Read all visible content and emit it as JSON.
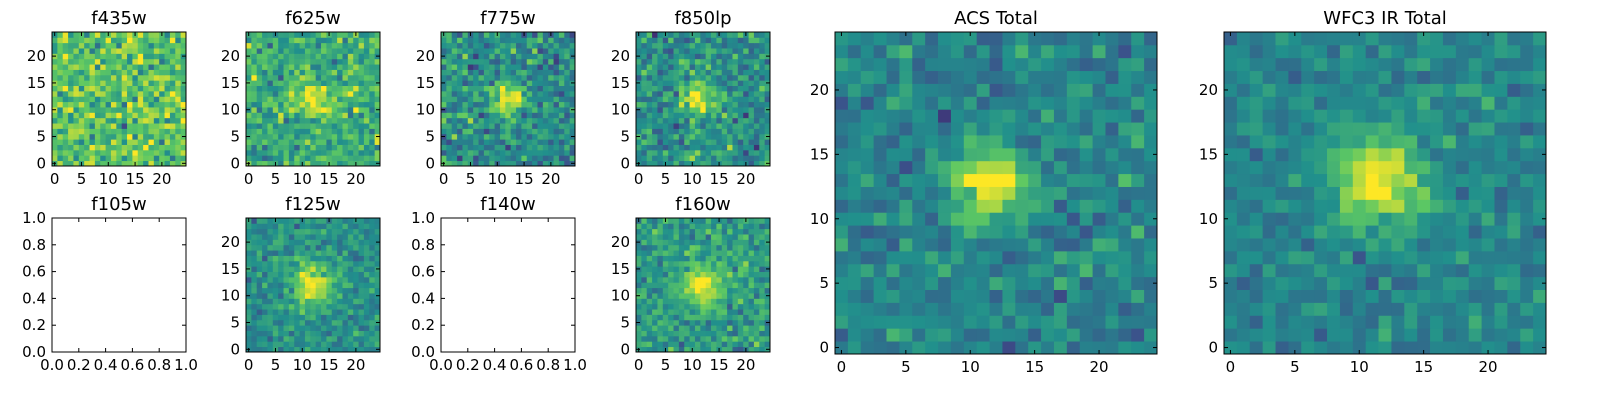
{
  "chart_data": [
    {
      "type": "heatmap",
      "title": "f435w",
      "empty": false,
      "xticks": [
        "0",
        "5",
        "10",
        "15",
        "20"
      ],
      "yticks": [
        "0",
        "5",
        "10",
        "15",
        "20"
      ],
      "xlim": [
        -0.5,
        24.5
      ],
      "ylim": [
        -0.5,
        24.5
      ],
      "peak": [
        12,
        12
      ],
      "noise": 0.55,
      "signal": 0.0,
      "base": 0.72,
      "sigma": 2.2,
      "seed": 11
    },
    {
      "type": "heatmap",
      "title": "f625w",
      "empty": false,
      "xticks": [
        "0",
        "5",
        "10",
        "15",
        "20"
      ],
      "yticks": [
        "0",
        "5",
        "10",
        "15",
        "20"
      ],
      "xlim": [
        -0.5,
        24.5
      ],
      "ylim": [
        -0.5,
        24.5
      ],
      "peak": [
        12,
        12
      ],
      "noise": 0.5,
      "signal": 0.35,
      "base": 0.62,
      "sigma": 2.2,
      "seed": 23
    },
    {
      "type": "heatmap",
      "title": "f775w",
      "empty": false,
      "xticks": [
        "0",
        "5",
        "10",
        "15",
        "20"
      ],
      "yticks": [
        "0",
        "5",
        "10",
        "15",
        "20"
      ],
      "xlim": [
        -0.5,
        24.5
      ],
      "ylim": [
        -0.5,
        24.5
      ],
      "peak": [
        12,
        12
      ],
      "noise": 0.5,
      "signal": 0.55,
      "base": 0.48,
      "sigma": 2.0,
      "seed": 37
    },
    {
      "type": "heatmap",
      "title": "f850lp",
      "empty": false,
      "xticks": [
        "0",
        "5",
        "10",
        "15",
        "20"
      ],
      "yticks": [
        "0",
        "5",
        "10",
        "15",
        "20"
      ],
      "xlim": [
        -0.5,
        24.5
      ],
      "ylim": [
        -0.5,
        24.5
      ],
      "peak": [
        11,
        12
      ],
      "noise": 0.5,
      "signal": 0.5,
      "base": 0.5,
      "sigma": 2.0,
      "seed": 41
    },
    {
      "type": "heatmap",
      "title": "f105w",
      "empty": true,
      "xticks": [
        "0.0",
        "0.2",
        "0.4",
        "0.6",
        "0.8",
        "1.0"
      ],
      "yticks": [
        "0.0",
        "0.2",
        "0.4",
        "0.6",
        "0.8",
        "1.0"
      ],
      "xlim": [
        0,
        1
      ],
      "ylim": [
        0,
        1
      ]
    },
    {
      "type": "heatmap",
      "title": "f125w",
      "empty": false,
      "xticks": [
        "0",
        "5",
        "10",
        "15",
        "20"
      ],
      "yticks": [
        "0",
        "5",
        "10",
        "15",
        "20"
      ],
      "xlim": [
        -0.5,
        24.5
      ],
      "ylim": [
        -0.5,
        24.5
      ],
      "peak": [
        12,
        12
      ],
      "noise": 0.35,
      "signal": 0.5,
      "base": 0.5,
      "sigma": 2.6,
      "seed": 53
    },
    {
      "type": "heatmap",
      "title": "f140w",
      "empty": true,
      "xticks": [
        "0.0",
        "0.2",
        "0.4",
        "0.6",
        "0.8",
        "1.0"
      ],
      "yticks": [
        "0.0",
        "0.2",
        "0.4",
        "0.6",
        "0.8",
        "1.0"
      ],
      "xlim": [
        0,
        1
      ],
      "ylim": [
        0,
        1
      ]
    },
    {
      "type": "heatmap",
      "title": "f160w",
      "empty": false,
      "xticks": [
        "0",
        "5",
        "10",
        "15",
        "20"
      ],
      "yticks": [
        "0",
        "5",
        "10",
        "15",
        "20"
      ],
      "xlim": [
        -0.5,
        24.5
      ],
      "ylim": [
        -0.5,
        24.5
      ],
      "peak": [
        12,
        12
      ],
      "noise": 0.4,
      "signal": 0.45,
      "base": 0.55,
      "sigma": 2.6,
      "seed": 67
    },
    {
      "type": "heatmap",
      "title": "ACS Total",
      "empty": false,
      "xticks": [
        "0",
        "5",
        "10",
        "15",
        "20"
      ],
      "yticks": [
        "0",
        "5",
        "10",
        "15",
        "20"
      ],
      "xlim": [
        -0.5,
        24.5
      ],
      "ylim": [
        -0.5,
        24.5
      ],
      "peak": [
        11.5,
        12.5
      ],
      "noise": 0.35,
      "signal": 0.6,
      "base": 0.45,
      "sigma": 1.9,
      "seed": 79
    },
    {
      "type": "heatmap",
      "title": "WFC3 IR Total",
      "empty": false,
      "xticks": [
        "0",
        "5",
        "10",
        "15",
        "20"
      ],
      "yticks": [
        "0",
        "5",
        "10",
        "15",
        "20"
      ],
      "xlim": [
        -0.5,
        24.5
      ],
      "ylim": [
        -0.5,
        24.5
      ],
      "peak": [
        11.5,
        13
      ],
      "noise": 0.28,
      "signal": 0.6,
      "base": 0.45,
      "sigma": 2.4,
      "seed": 97
    }
  ],
  "colormap": [
    "#440154",
    "#3b528b",
    "#21908c",
    "#5dc863",
    "#fde725"
  ],
  "colors": {
    "frame": "#000000",
    "background": "#ffffff"
  }
}
